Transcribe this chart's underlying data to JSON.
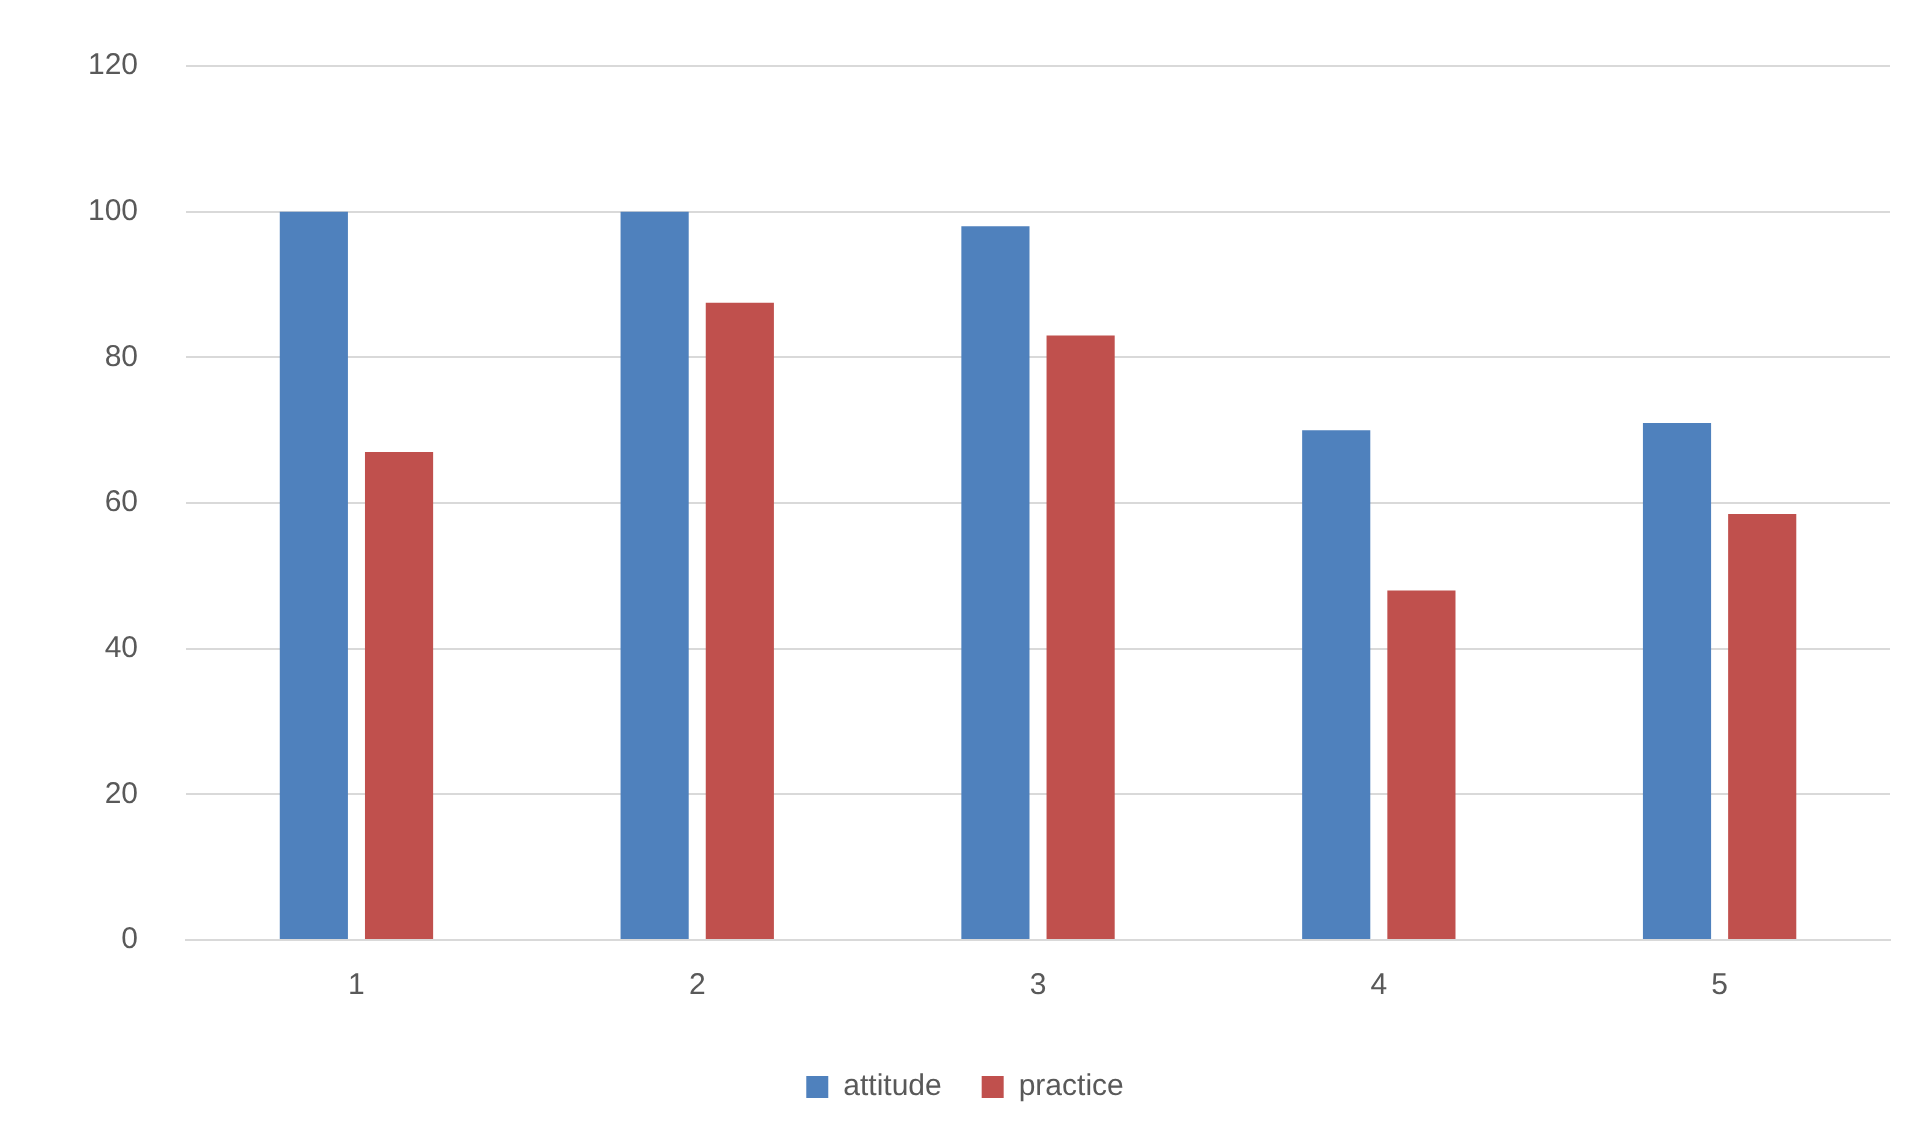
{
  "chart_data": {
    "type": "bar",
    "categories": [
      "1",
      "2",
      "3",
      "4",
      "5"
    ],
    "series": [
      {
        "name": "attitude",
        "color": "#4f81bd",
        "values": [
          100,
          100,
          98,
          70,
          71
        ]
      },
      {
        "name": "practice",
        "color": "#c0504d",
        "values": [
          67,
          87.5,
          83,
          48,
          58.5
        ]
      }
    ],
    "ylim": [
      0,
      120
    ],
    "yticks": [
      0,
      20,
      40,
      60,
      80,
      100,
      120
    ],
    "grid": "y",
    "legend": "bottom"
  }
}
